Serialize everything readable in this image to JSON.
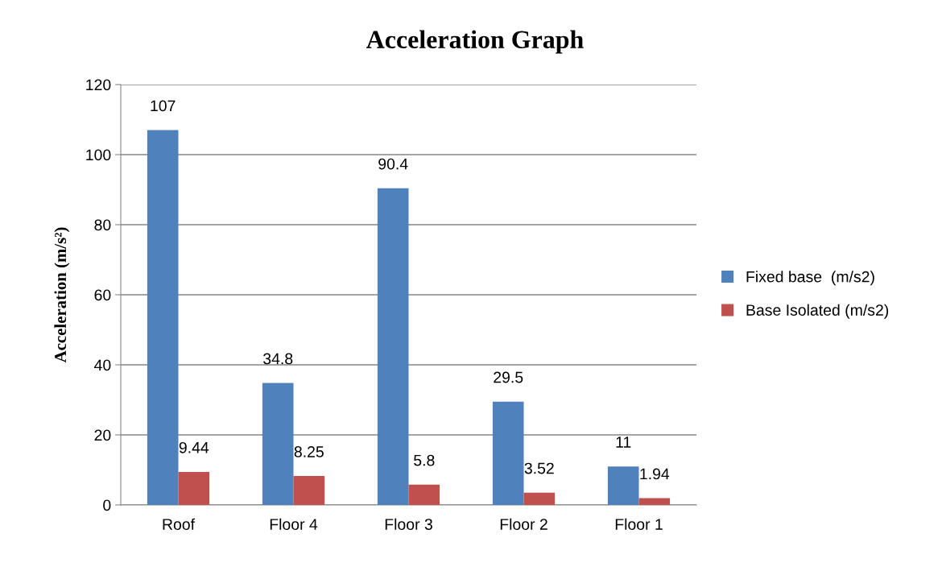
{
  "chart_data": {
    "type": "bar",
    "title": "Acceleration Graph",
    "ylabel": "Acceleration (m/s²)",
    "categories": [
      "Roof",
      "Floor 4",
      "Floor 3",
      "Floor 2",
      "Floor 1"
    ],
    "series": [
      {
        "name": "Fixed base  (m/s2)",
        "color": "#4f81bd",
        "values": [
          107,
          34.8,
          90.4,
          29.5,
          11
        ]
      },
      {
        "name": "Base Isolated (m/s2)",
        "color": "#c0504d",
        "values": [
          9.44,
          8.25,
          5.8,
          3.52,
          1.94
        ]
      }
    ],
    "ylim": [
      0,
      120
    ],
    "yticks": [
      0,
      20,
      40,
      60,
      80,
      100,
      120
    ],
    "grid": "y",
    "legend": "right",
    "data_labels": true
  }
}
